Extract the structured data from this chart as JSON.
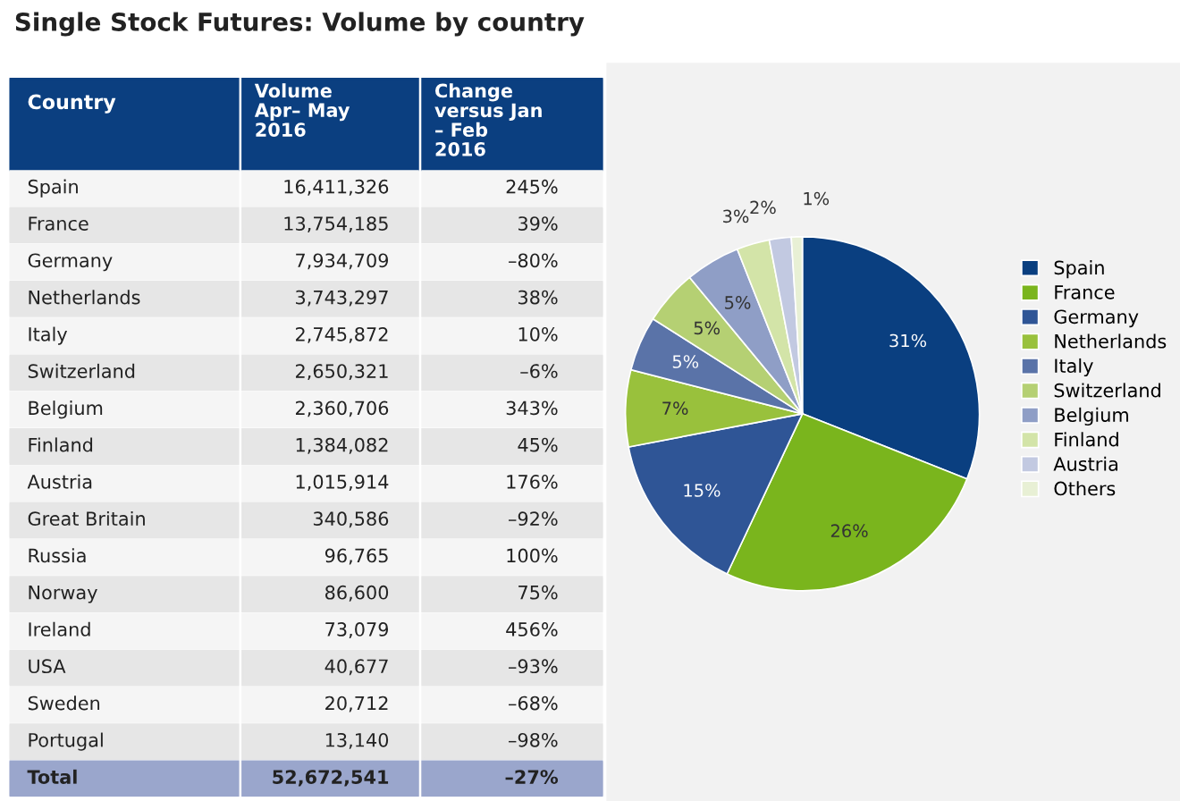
{
  "chart_data": [
    {
      "type": "other",
      "title": "Single Stock Futures: Volume by country",
      "xlabel": "Country",
      "categories": [
        "Spain",
        "France",
        "Germany",
        "Netherlands",
        "Italy",
        "Switzerland",
        "Belgium",
        "Finland",
        "Austria",
        "Great Britain",
        "Russia",
        "Norway",
        "Ireland",
        "USA",
        "Sweden",
        "Portugal",
        "Total"
      ],
      "series": [
        {
          "name": "Volume Apr– May 2016",
          "colors": [
            "#f5f5f5",
            "#e6e6e6",
            "#f5f5f5",
            "#e6e6e6",
            "#f5f5f5",
            "#e6e6e6",
            "#f5f5f5",
            "#e6e6e6",
            "#f5f5f5",
            "#e6e6e6",
            "#f5f5f5",
            "#e6e6e6",
            "#f5f5f5",
            "#e6e6e6",
            "#f5f5f5",
            "#e6e6e6",
            "#9aa6cc"
          ],
          "values": [
            16411326,
            13754185,
            7934709,
            3743297,
            2745872,
            2650321,
            2360706,
            1384082,
            1015914,
            340586,
            96765,
            86600,
            73079,
            40677,
            20712,
            13140,
            52672541
          ],
          "value_labels": [
            "16,411,326",
            "13,754,185",
            "7,934,709",
            "3,743,297",
            "2,745,872",
            "2,650,321",
            "2,360,706",
            "1,384,082",
            "1,015,914",
            "340,586",
            "96,765",
            "86,600",
            "73,079",
            "40,677",
            "20,712",
            "13,140",
            "52,672,541"
          ]
        },
        {
          "name": "Change versus Jan – Feb 2016",
          "colors": [
            "#f5f5f5",
            "#e6e6e6",
            "#f5f5f5",
            "#e6e6e6",
            "#f5f5f5",
            "#e6e6e6",
            "#f5f5f5",
            "#e6e6e6",
            "#f5f5f5",
            "#e6e6e6",
            "#f5f5f5",
            "#e6e6e6",
            "#f5f5f5",
            "#e6e6e6",
            "#f5f5f5",
            "#e6e6e6",
            "#9aa6cc"
          ],
          "values": [
            245,
            39,
            -80,
            38,
            10,
            -6,
            343,
            45,
            176,
            -92,
            100,
            75,
            456,
            -93,
            -68,
            -98,
            -27
          ],
          "value_labels": [
            "245%",
            "39%",
            "–80%",
            "38%",
            "10%",
            "–6%",
            "343%",
            "45%",
            "176%",
            "–92%",
            "100%",
            "75%",
            "456%",
            "–93%",
            "–68%",
            "–98%",
            "–27%"
          ]
        }
      ]
    },
    {
      "type": "pie",
      "legend": "right",
      "categories": [
        "Spain",
        "France",
        "Germany",
        "Netherlands",
        "Italy",
        "Switzerland",
        "Belgium",
        "Finland",
        "Austria",
        "Others"
      ],
      "values": [
        31,
        26,
        15,
        7,
        5,
        5,
        5,
        3,
        2,
        1
      ],
      "value_labels": [
        "31%",
        "26%",
        "15%",
        "7%",
        "5%",
        "5%",
        "5%",
        "3%",
        "2%",
        "1%"
      ],
      "colors": [
        "#0a3f80",
        "#7ab51d",
        "#2f5596",
        "#99c13c",
        "#5a73a8",
        "#b5d073",
        "#8f9ec6",
        "#d3e4a8",
        "#c2c9e1",
        "#e8f0d5"
      ]
    }
  ]
}
